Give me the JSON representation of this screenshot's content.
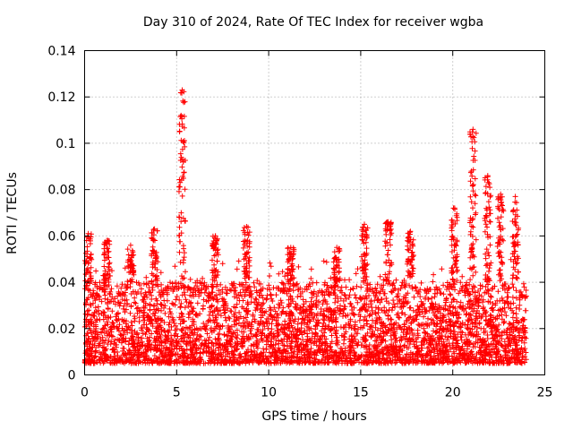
{
  "chart_data": {
    "type": "scatter",
    "title": "Day 310 of 2024, Rate Of TEC Index for receiver wgba",
    "xlabel": "GPS time / hours",
    "ylabel": "ROTI / TECUs",
    "xlim": [
      0,
      25
    ],
    "ylim": [
      0,
      0.14
    ],
    "xticks": [
      "0",
      "5",
      "10",
      "15",
      "20",
      "25"
    ],
    "yticks": [
      "0",
      "0.02",
      "0.04",
      "0.06",
      "0.08",
      "0.1",
      "0.12",
      "0.14"
    ],
    "grid": true,
    "marker": "+",
    "color": "#ff0000",
    "series": [
      {
        "name": "ROTI",
        "x_range": [
          0,
          24
        ],
        "baseline_range": [
          0.005,
          0.04
        ],
        "peaks": [
          {
            "x": 0.2,
            "y": 0.061
          },
          {
            "x": 1.2,
            "y": 0.058
          },
          {
            "x": 2.5,
            "y": 0.056
          },
          {
            "x": 3.8,
            "y": 0.063
          },
          {
            "x": 5.3,
            "y": 0.123
          },
          {
            "x": 7.1,
            "y": 0.06
          },
          {
            "x": 8.8,
            "y": 0.064
          },
          {
            "x": 11.2,
            "y": 0.055
          },
          {
            "x": 13.7,
            "y": 0.055
          },
          {
            "x": 15.2,
            "y": 0.065
          },
          {
            "x": 16.5,
            "y": 0.066
          },
          {
            "x": 17.7,
            "y": 0.062
          },
          {
            "x": 20.1,
            "y": 0.072
          },
          {
            "x": 21.1,
            "y": 0.106
          },
          {
            "x": 21.9,
            "y": 0.086
          },
          {
            "x": 22.6,
            "y": 0.078
          },
          {
            "x": 23.4,
            "y": 0.077
          }
        ]
      }
    ]
  }
}
